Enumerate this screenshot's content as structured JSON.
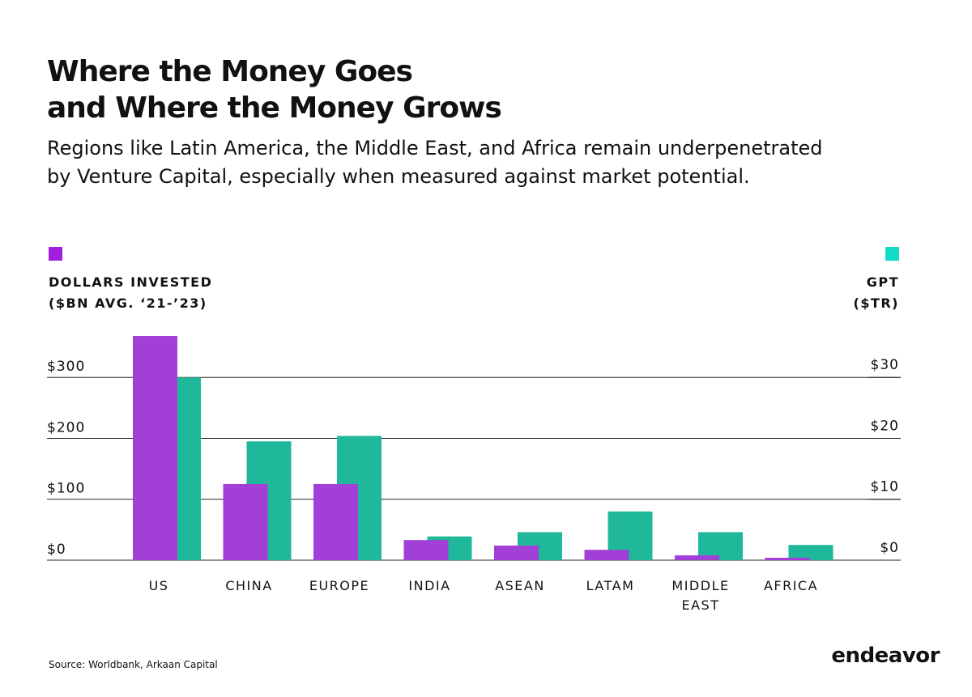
{
  "chart_data": {
    "type": "bar",
    "title": [
      "Where the Money Goes",
      "and Where the Money Grows"
    ],
    "subtitle": [
      "Regions like Latin America, the Middle East, and Africa remain underpenetrated",
      "by Venture Capital, especially when measured against market potential."
    ],
    "y_label": [
      "DOLLARS INVESTED",
      "($BN AVG. ‘21-’23)"
    ],
    "y2_label": [
      "GPT",
      "($TR)"
    ],
    "categories": [
      "US",
      "CHINA",
      "EUROPE",
      "INDIA",
      "ASEAN",
      "LATAM",
      "MIDDLE EAST",
      "AFRICA"
    ],
    "series": [
      {
        "name": "GPT",
        "color": "#1fb89a",
        "axis": "y2",
        "values": [
          30,
          19.5,
          20.4,
          3.9,
          4.6,
          8,
          4.6,
          2.5
        ]
      },
      {
        "name": "Dollars invested",
        "color": "#a23fd6",
        "values": [
          368,
          125,
          125,
          33,
          24,
          17,
          8,
          4
        ]
      }
    ],
    "ylim": [
      0,
      380
    ],
    "yticks": [
      {
        "value": 0,
        "label": "$0"
      },
      {
        "value": 100,
        "label": "$100"
      },
      {
        "value": 200,
        "label": "$200"
      },
      {
        "value": 300,
        "label": "$300"
      }
    ],
    "y2lim": [
      0,
      38
    ],
    "y2ticks": [
      {
        "value": 0,
        "label": "$0"
      },
      {
        "value": 10,
        "label": "$10"
      },
      {
        "value": 20,
        "label": "$20"
      },
      {
        "value": 30,
        "label": "$30"
      }
    ],
    "legend_colors": {
      "y": "#a020e0",
      "y2": "#12dcc8"
    },
    "grid": true,
    "source": "Source: Worldbank, Arkaan Capital",
    "brand": "endeavor"
  }
}
